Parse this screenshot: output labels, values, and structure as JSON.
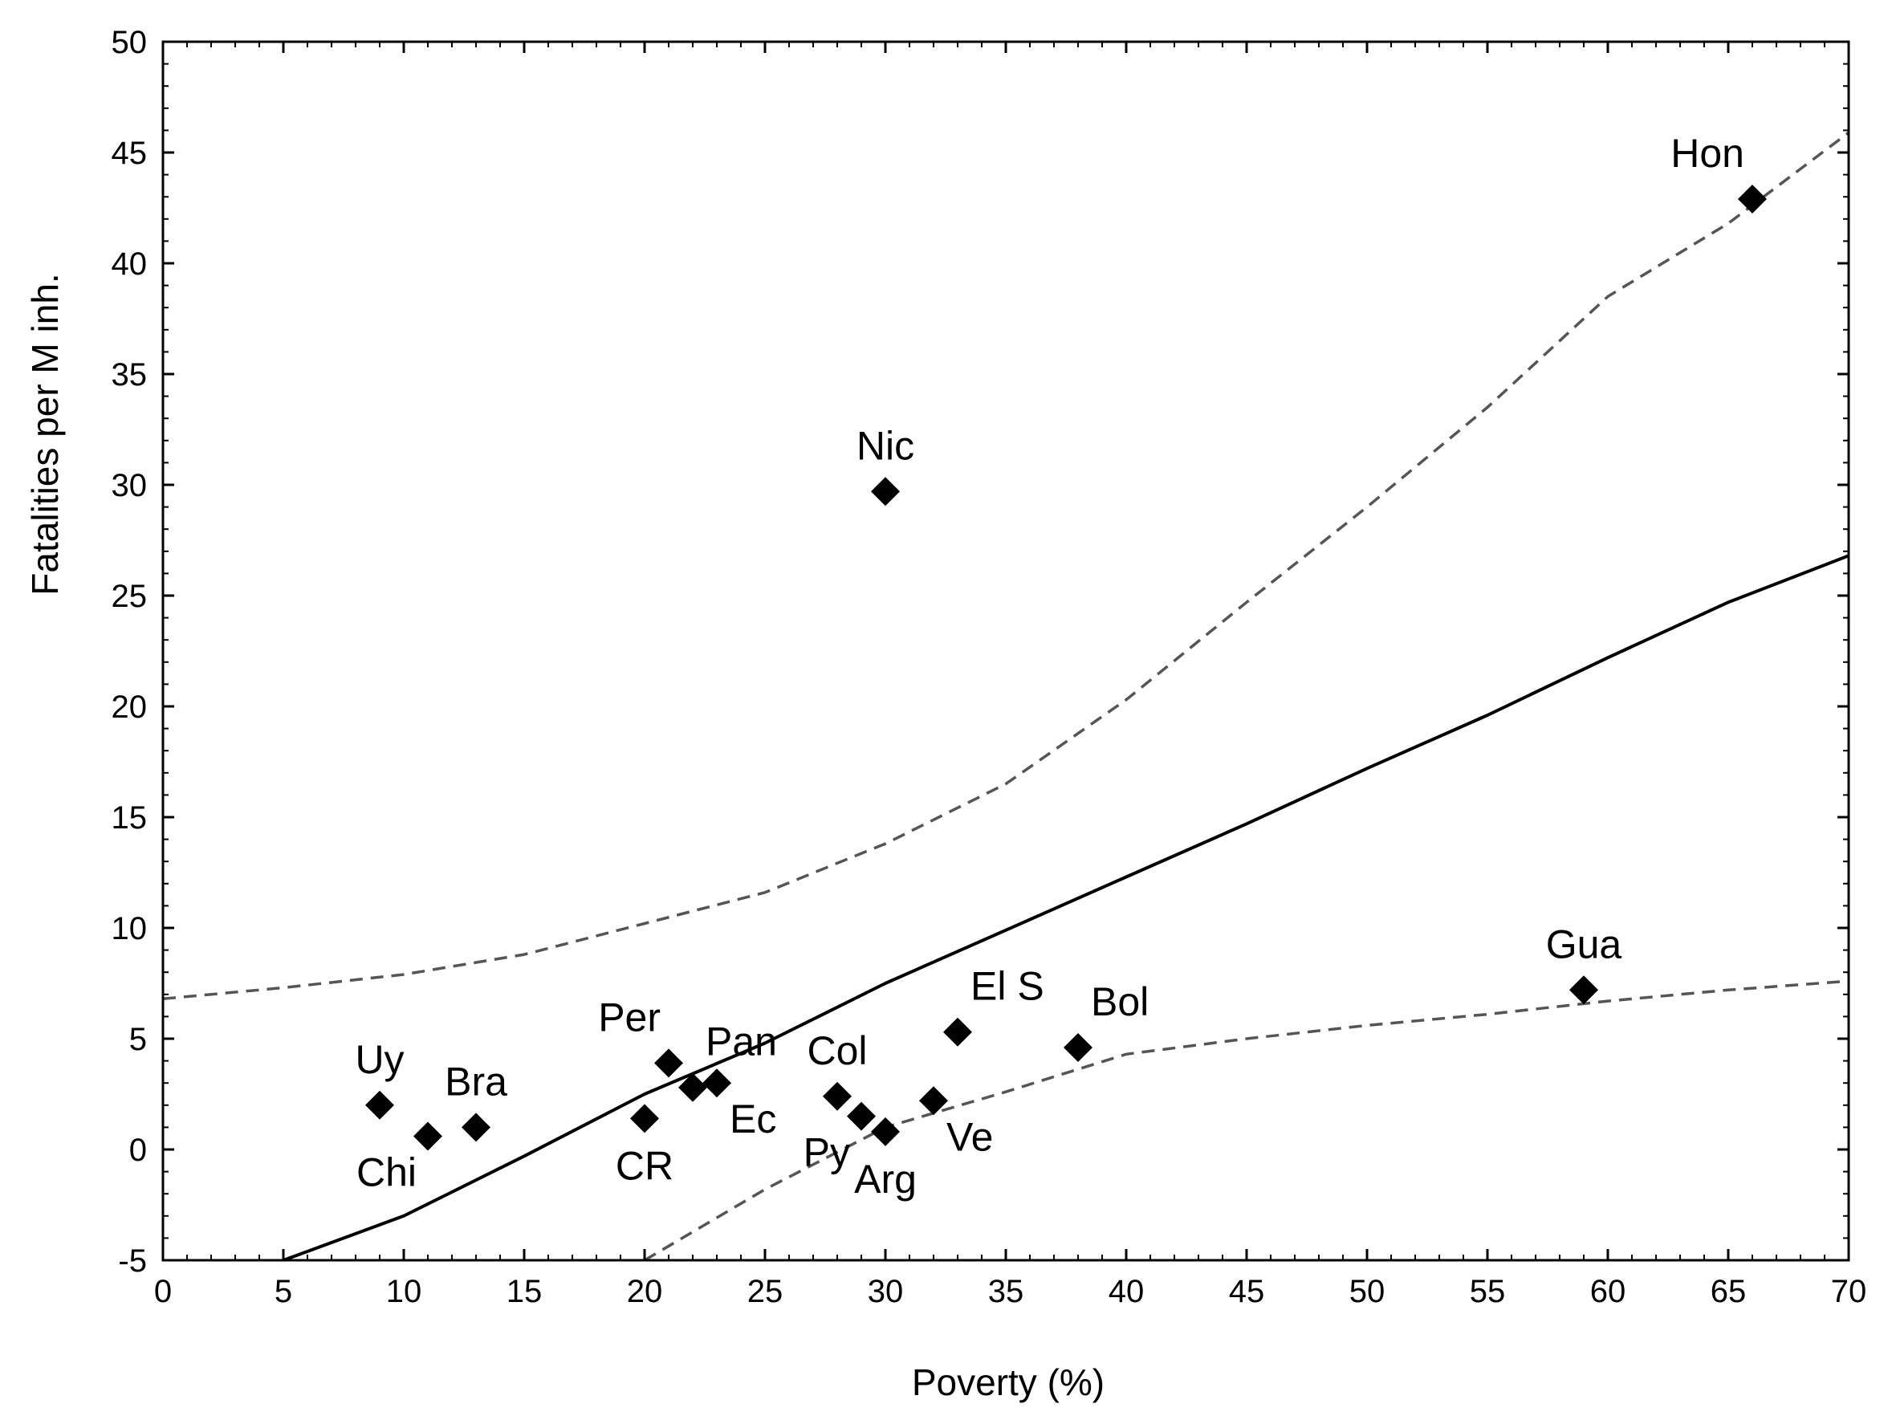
{
  "chart_data": {
    "type": "scatter",
    "title": "",
    "xlabel": "Poverty (%)",
    "ylabel": "Fatalities per M inh.",
    "xlim": [
      0,
      70
    ],
    "ylim": [
      -5,
      50
    ],
    "xticks": [
      0,
      5,
      10,
      15,
      20,
      25,
      30,
      35,
      40,
      45,
      50,
      55,
      60,
      65,
      70
    ],
    "yticks": [
      -5,
      0,
      5,
      10,
      15,
      20,
      25,
      30,
      35,
      40,
      45,
      50
    ],
    "grid": false,
    "points": [
      {
        "label": "Uy",
        "x": 9,
        "y": 2.0,
        "label_pos": "above"
      },
      {
        "label": "Chi",
        "x": 11,
        "y": 0.6,
        "label_pos": "below-left"
      },
      {
        "label": "Bra",
        "x": 13,
        "y": 1.0,
        "label_pos": "above"
      },
      {
        "label": "CR",
        "x": 20,
        "y": 1.4,
        "label_pos": "below"
      },
      {
        "label": "Per",
        "x": 21,
        "y": 3.9,
        "label_pos": "above-left"
      },
      {
        "label": "Pan",
        "x": 22,
        "y": 2.8,
        "label_pos": "above-right"
      },
      {
        "label": "Ec",
        "x": 23,
        "y": 3.0,
        "label_pos": "below-right"
      },
      {
        "label": "Col",
        "x": 28,
        "y": 2.4,
        "label_pos": "above"
      },
      {
        "label": "Py",
        "x": 29,
        "y": 1.5,
        "label_pos": "below-left"
      },
      {
        "label": "Arg",
        "x": 30,
        "y": 0.8,
        "label_pos": "below"
      },
      {
        "label": "Ve",
        "x": 32,
        "y": 2.2,
        "label_pos": "below-right"
      },
      {
        "label": "El S",
        "x": 33,
        "y": 5.3,
        "label_pos": "above-right"
      },
      {
        "label": "Bol",
        "x": 38,
        "y": 4.6,
        "label_pos": "above-right"
      },
      {
        "label": "Nic",
        "x": 30,
        "y": 29.7,
        "label_pos": "above"
      },
      {
        "label": "Gua",
        "x": 59,
        "y": 7.2,
        "label_pos": "above"
      },
      {
        "label": "Hon",
        "x": 66,
        "y": 42.9,
        "label_pos": "above-left"
      }
    ],
    "series": [
      {
        "name": "regression",
        "style": "solid",
        "x": [
          5,
          10,
          15,
          20,
          25,
          30,
          35,
          40,
          45,
          50,
          55,
          60,
          65,
          70
        ],
        "y": [
          -5.0,
          -3.0,
          -0.3,
          2.5,
          4.8,
          7.5,
          9.9,
          12.3,
          14.7,
          17.2,
          19.6,
          22.2,
          24.7,
          26.8
        ]
      },
      {
        "name": "upper confidence band",
        "style": "dashed",
        "x": [
          0,
          5,
          10,
          15,
          20,
          25,
          30,
          35,
          40,
          45,
          50,
          55,
          60,
          65,
          70
        ],
        "y": [
          6.8,
          7.3,
          7.9,
          8.8,
          10.2,
          11.6,
          13.8,
          16.5,
          20.3,
          24.7,
          29.0,
          33.5,
          38.5,
          41.8,
          45.9
        ]
      },
      {
        "name": "lower confidence band",
        "style": "dashed",
        "x": [
          20,
          25,
          30,
          35,
          40,
          45,
          50,
          55,
          60,
          65,
          70
        ],
        "y": [
          -5.0,
          -1.8,
          1.0,
          2.6,
          4.3,
          5.0,
          5.6,
          6.1,
          6.7,
          7.2,
          7.6
        ]
      }
    ],
    "colors": {
      "marker": "#000000",
      "line": "#000000",
      "band": "#555555",
      "axis": "#000000"
    }
  }
}
